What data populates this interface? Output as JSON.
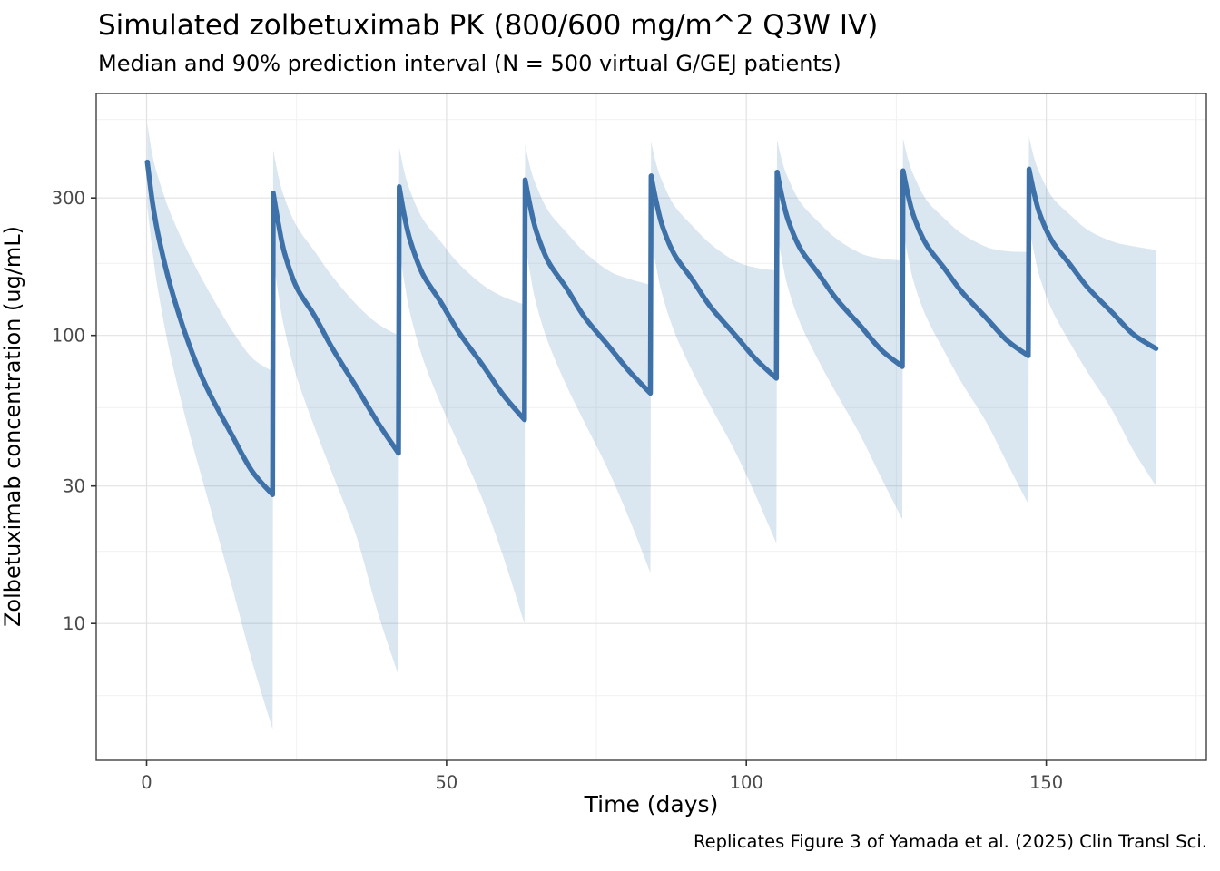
{
  "chart_data": {
    "type": "line",
    "title": "Simulated zolbetuximab PK (800/600 mg/m^2 Q3W IV)",
    "subtitle": "Median and 90% prediction interval (N = 500 virtual G/GEJ patients)",
    "caption": "Replicates Figure 3 of Yamada et al. (2025) Clin Transl Sci.",
    "xlabel": "Time (days)",
    "ylabel": "Zolbetuximab concentration (ug/mL)",
    "legend": "none",
    "x_axis": {
      "scale": "linear",
      "domain": [
        -8.4,
        176.7
      ],
      "major_ticks": [
        0,
        50,
        100,
        150
      ],
      "minor_gridlines": [
        25,
        75,
        125,
        175
      ]
    },
    "y_axis": {
      "scale": "log10",
      "domain": [
        3.35,
        692
      ],
      "major_ticks": [
        300,
        100,
        30,
        10
      ],
      "minor_gridlines": [
        562,
        178,
        56.2,
        17.8,
        5.62
      ]
    },
    "colors": {
      "median_line": "#3e71a8",
      "interval_fill": "rgba(70,130,180,0.20)",
      "major_grid": "#e2e2e2",
      "minor_grid": "#f1f1f1",
      "panel_border": "#404040",
      "tick_label": "#4a4a4a"
    },
    "grid": "on",
    "dose_days": [
      0,
      21,
      42,
      63,
      84,
      105,
      126,
      147
    ],
    "offsets_within_cycle": [
      0.12,
      1,
      2,
      4,
      7,
      10,
      14,
      17.5,
      21
    ],
    "last_cycle_end_offset": 21.3,
    "units": "ug/mL",
    "cycles": [
      {
        "dose_day": 0,
        "median": [
          400,
          288,
          220,
          148,
          94,
          66,
          46,
          34,
          28
        ],
        "hi95": [
          543,
          420,
          350,
          265,
          193,
          147,
          106,
          84,
          75
        ],
        "lo5": [
          280,
          195,
          140,
          85,
          47,
          28,
          14,
          7.5,
          4.3
        ]
      },
      {
        "dose_day": 21,
        "median": [
          312,
          243,
          193,
          147,
          117,
          90,
          66,
          50,
          39
        ],
        "hi95": [
          440,
          355,
          300,
          240,
          196,
          160,
          128,
          110,
          100
        ],
        "lo5": [
          185,
          138,
          105,
          72,
          48,
          33,
          20,
          11,
          6.6
        ]
      },
      {
        "dose_day": 42,
        "median": [
          328,
          259,
          212,
          164,
          131,
          103,
          79,
          62,
          51
        ],
        "hi95": [
          450,
          368,
          315,
          255,
          212,
          178,
          150,
          136,
          128
        ],
        "lo5": [
          200,
          152,
          118,
          84,
          58,
          42,
          27,
          17,
          10
        ]
      },
      {
        "dose_day": 63,
        "median": [
          347,
          278,
          229,
          180,
          146,
          116,
          92,
          75,
          63
        ],
        "hi95": [
          460,
          380,
          330,
          270,
          228,
          195,
          168,
          157,
          150
        ],
        "lo5": [
          210,
          162,
          128,
          94,
          67,
          50,
          34,
          23,
          15
        ]
      },
      {
        "dose_day": 84,
        "median": [
          358,
          290,
          240,
          191,
          156,
          126,
          101,
          83,
          71
        ],
        "hi95": [
          470,
          392,
          342,
          282,
          240,
          208,
          182,
          172,
          168
        ],
        "lo5": [
          220,
          172,
          138,
          103,
          75,
          57,
          40,
          28,
          19
        ]
      },
      {
        "dose_day": 105,
        "median": [
          369,
          300,
          250,
          200,
          164,
          134,
          108,
          89,
          78
        ],
        "hi95": [
          478,
          400,
          350,
          290,
          248,
          217,
          193,
          185,
          182
        ],
        "lo5": [
          228,
          180,
          145,
          110,
          82,
          63,
          45,
          32,
          23
        ]
      },
      {
        "dose_day": 126,
        "median": [
          373,
          305,
          256,
          207,
          171,
          141,
          115,
          96,
          85
        ],
        "hi95": [
          484,
          406,
          356,
          296,
          255,
          225,
          203,
          196,
          195
        ],
        "lo5": [
          234,
          186,
          151,
          116,
          88,
          68,
          50,
          36,
          26
        ]
      },
      {
        "dose_day": 147,
        "median": [
          378,
          310,
          261,
          212,
          176,
          146,
          120,
          101,
          90
        ],
        "hi95": [
          490,
          412,
          362,
          302,
          262,
          232,
          212,
          204,
          198
        ],
        "lo5": [
          240,
          192,
          157,
          122,
          94,
          74,
          55,
          40,
          30
        ]
      }
    ]
  }
}
